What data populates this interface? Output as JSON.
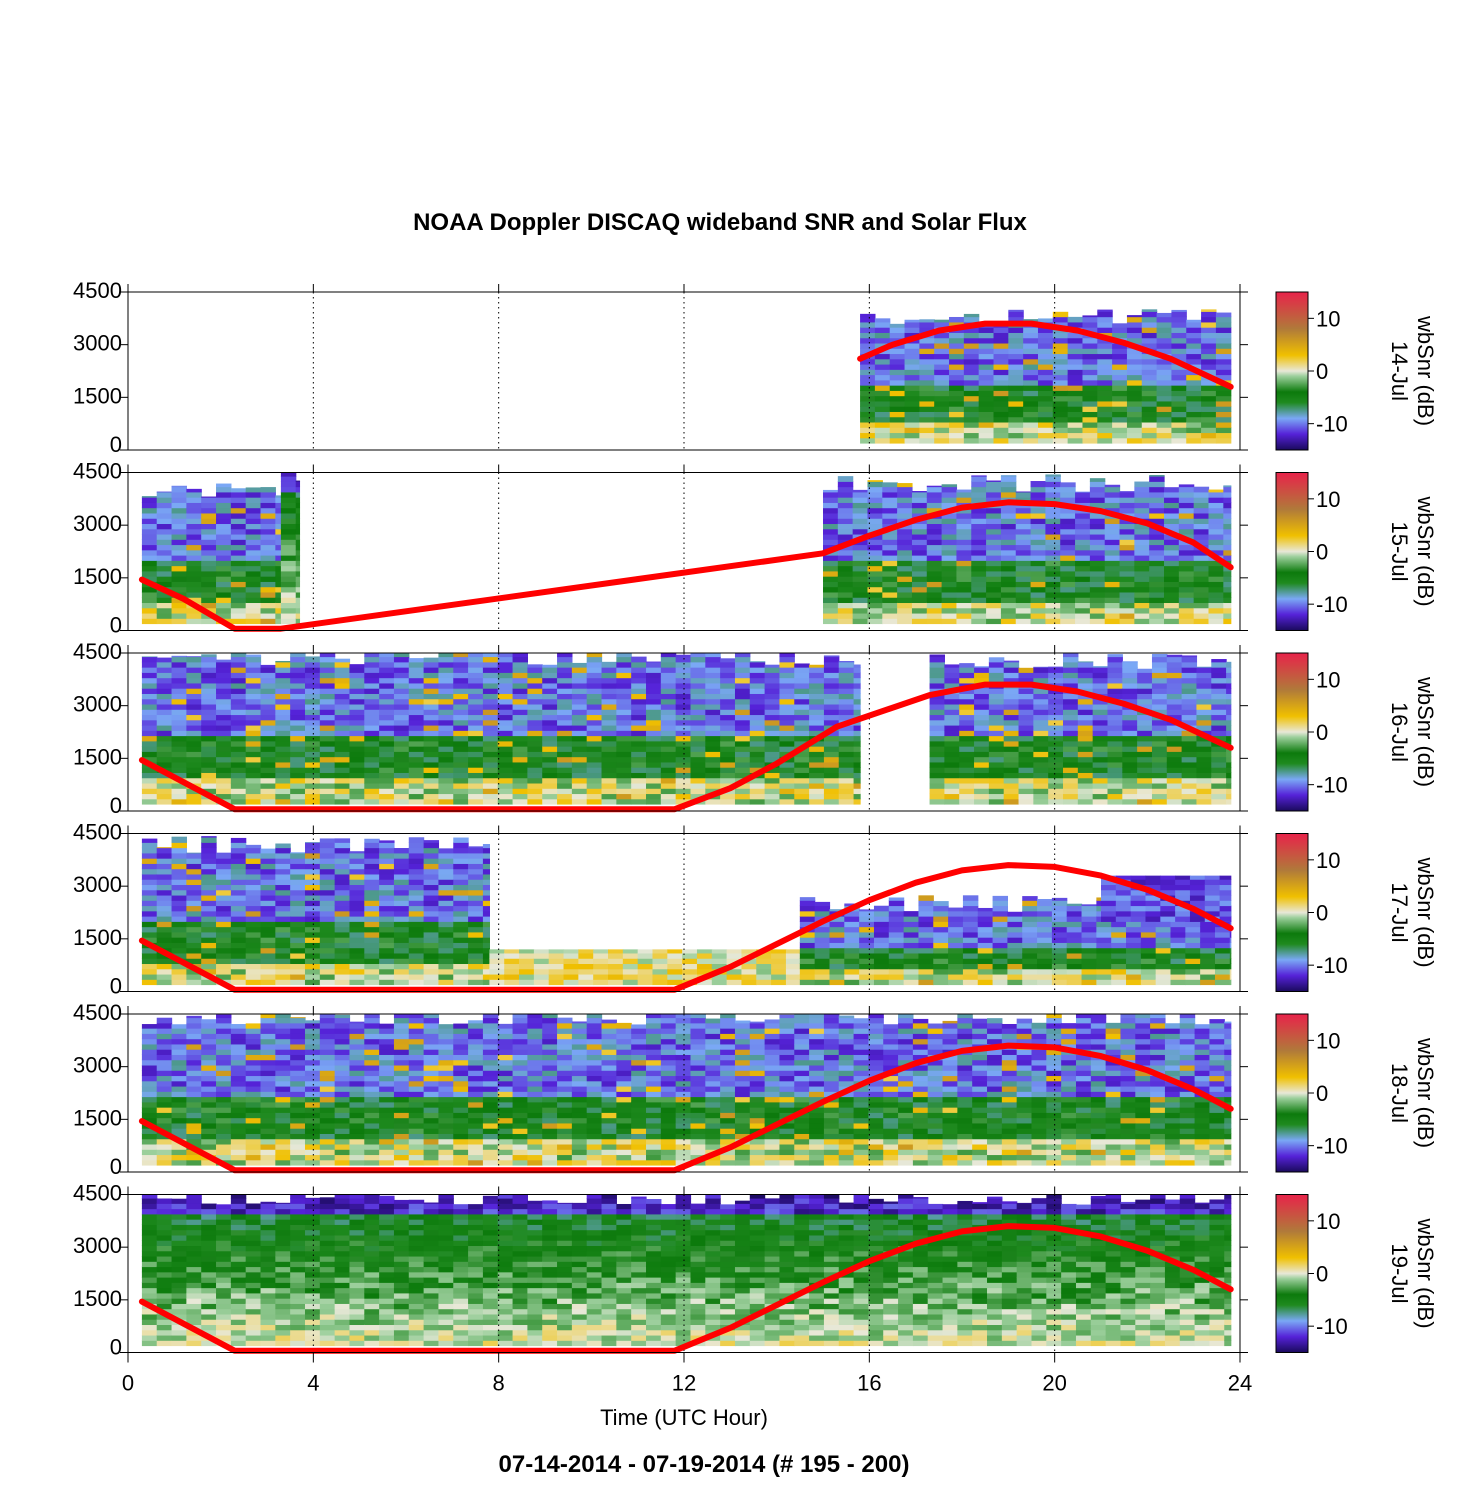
{
  "chart_data": {
    "type": "heatmap",
    "title": "NOAA Doppler DISCAQ wideband SNR and Solar Flux",
    "subtitle": "07-14-2014 - 07-19-2014   (# 195 - 200)",
    "xlabel": "Time (UTC Hour)",
    "xlim": [
      0,
      24
    ],
    "xticks": [
      "0",
      "4",
      "8",
      "12",
      "16",
      "20",
      "24"
    ],
    "xtick_values": [
      0,
      4,
      8,
      12,
      16,
      20,
      24
    ],
    "ylim": [
      0,
      4500
    ],
    "yticks": [
      "0",
      "1500",
      "3000",
      "4500"
    ],
    "ytick_values": [
      0,
      1500,
      3000,
      4500
    ],
    "grid": "vertical dotted at 4, 8, 12, 16, 20 h",
    "colorbar": {
      "label": "wbSnr (dB)",
      "range": [
        -15,
        15
      ],
      "ticks": [
        "10",
        "0",
        "-10"
      ],
      "tick_values": [
        10,
        0,
        -10
      ],
      "stops": [
        {
          "v": -15,
          "color": "#1a0a5c"
        },
        {
          "v": -12,
          "color": "#5522d8"
        },
        {
          "v": -9,
          "color": "#7aa8f5"
        },
        {
          "v": -6,
          "color": "#1f8a1f"
        },
        {
          "v": -4,
          "color": "#0c7a0c"
        },
        {
          "v": -1,
          "color": "#9ccf9c"
        },
        {
          "v": 0,
          "color": "#e8e8d8"
        },
        {
          "v": 3,
          "color": "#f0c000"
        },
        {
          "v": 8,
          "color": "#b07a3a"
        },
        {
          "v": 15,
          "color": "#e8234a"
        }
      ]
    },
    "solar_flux_color": "#ff0000",
    "panels": [
      {
        "day": "14-Jul",
        "blocks": [
          [
            15.8,
            23.8,
            200,
            3800,
            "mixed"
          ]
        ],
        "solar": [
          [
            15.8,
            2600
          ],
          [
            16.5,
            3000
          ],
          [
            17.5,
            3400
          ],
          [
            18.5,
            3600
          ],
          [
            19.5,
            3600
          ],
          [
            20.5,
            3400
          ],
          [
            21.5,
            3050
          ],
          [
            22.5,
            2600
          ],
          [
            23.8,
            1800
          ]
        ]
      },
      {
        "day": "15-Jul",
        "blocks": [
          [
            0.3,
            3.3,
            200,
            4000,
            "mixed"
          ],
          [
            3.3,
            3.7,
            200,
            4500,
            "green"
          ],
          [
            15.0,
            23.8,
            200,
            4200,
            "mixed"
          ]
        ],
        "solar": [
          [
            0.3,
            1450
          ],
          [
            1.2,
            900
          ],
          [
            2.3,
            50
          ],
          [
            3.3,
            50
          ],
          [
            15.0,
            2200
          ],
          [
            16.0,
            2700
          ],
          [
            17.0,
            3150
          ],
          [
            18.0,
            3500
          ],
          [
            19.0,
            3650
          ],
          [
            20.0,
            3600
          ],
          [
            21.0,
            3400
          ],
          [
            22.0,
            3050
          ],
          [
            23.0,
            2500
          ],
          [
            23.8,
            1800
          ]
        ]
      },
      {
        "day": "16-Jul",
        "blocks": [
          [
            0.3,
            15.8,
            200,
            4400,
            "mixed"
          ],
          [
            17.3,
            23.8,
            200,
            4300,
            "mixed"
          ]
        ],
        "solar": [
          [
            0.3,
            1450
          ],
          [
            2.3,
            50
          ],
          [
            11.8,
            50
          ],
          [
            13.0,
            650
          ],
          [
            14.0,
            1350
          ],
          [
            15.3,
            2400
          ],
          [
            17.3,
            3300
          ],
          [
            18.5,
            3600
          ],
          [
            19.5,
            3600
          ],
          [
            20.5,
            3400
          ],
          [
            21.5,
            3050
          ],
          [
            22.5,
            2600
          ],
          [
            23.8,
            1800
          ]
        ]
      },
      {
        "day": "17-Jul",
        "blocks": [
          [
            0.3,
            7.8,
            200,
            4200,
            "mixed"
          ],
          [
            7.8,
            14.5,
            200,
            1200,
            "yellow"
          ],
          [
            14.5,
            23.8,
            200,
            2500,
            "mixed"
          ],
          [
            21.0,
            23.8,
            2000,
            3300,
            "purple"
          ]
        ],
        "solar": [
          [
            0.3,
            1450
          ],
          [
            2.3,
            50
          ],
          [
            11.8,
            50
          ],
          [
            13.0,
            700
          ],
          [
            14.0,
            1350
          ],
          [
            15.0,
            2000
          ],
          [
            16.0,
            2600
          ],
          [
            17.0,
            3100
          ],
          [
            18.0,
            3450
          ],
          [
            19.0,
            3600
          ],
          [
            20.0,
            3550
          ],
          [
            21.0,
            3300
          ],
          [
            22.0,
            2900
          ],
          [
            23.0,
            2350
          ],
          [
            23.8,
            1800
          ]
        ]
      },
      {
        "day": "18-Jul",
        "blocks": [
          [
            0.3,
            23.8,
            200,
            4450,
            "mixed"
          ]
        ],
        "solar": [
          [
            0.3,
            1450
          ],
          [
            2.3,
            50
          ],
          [
            11.8,
            50
          ],
          [
            13.0,
            700
          ],
          [
            14.0,
            1350
          ],
          [
            15.0,
            2000
          ],
          [
            16.0,
            2600
          ],
          [
            17.0,
            3100
          ],
          [
            18.0,
            3450
          ],
          [
            19.0,
            3600
          ],
          [
            20.0,
            3550
          ],
          [
            21.0,
            3300
          ],
          [
            22.0,
            2900
          ],
          [
            23.0,
            2350
          ],
          [
            23.8,
            1800
          ]
        ]
      },
      {
        "day": "19-Jul",
        "blocks": [
          [
            0.3,
            23.8,
            200,
            4450,
            "green"
          ]
        ],
        "solar": [
          [
            0.3,
            1450
          ],
          [
            2.3,
            50
          ],
          [
            11.8,
            50
          ],
          [
            13.0,
            700
          ],
          [
            14.0,
            1350
          ],
          [
            15.0,
            2000
          ],
          [
            16.0,
            2600
          ],
          [
            17.0,
            3100
          ],
          [
            18.0,
            3450
          ],
          [
            19.0,
            3600
          ],
          [
            20.0,
            3550
          ],
          [
            21.0,
            3300
          ],
          [
            22.0,
            2900
          ],
          [
            23.0,
            2350
          ],
          [
            23.8,
            1800
          ]
        ]
      }
    ]
  }
}
